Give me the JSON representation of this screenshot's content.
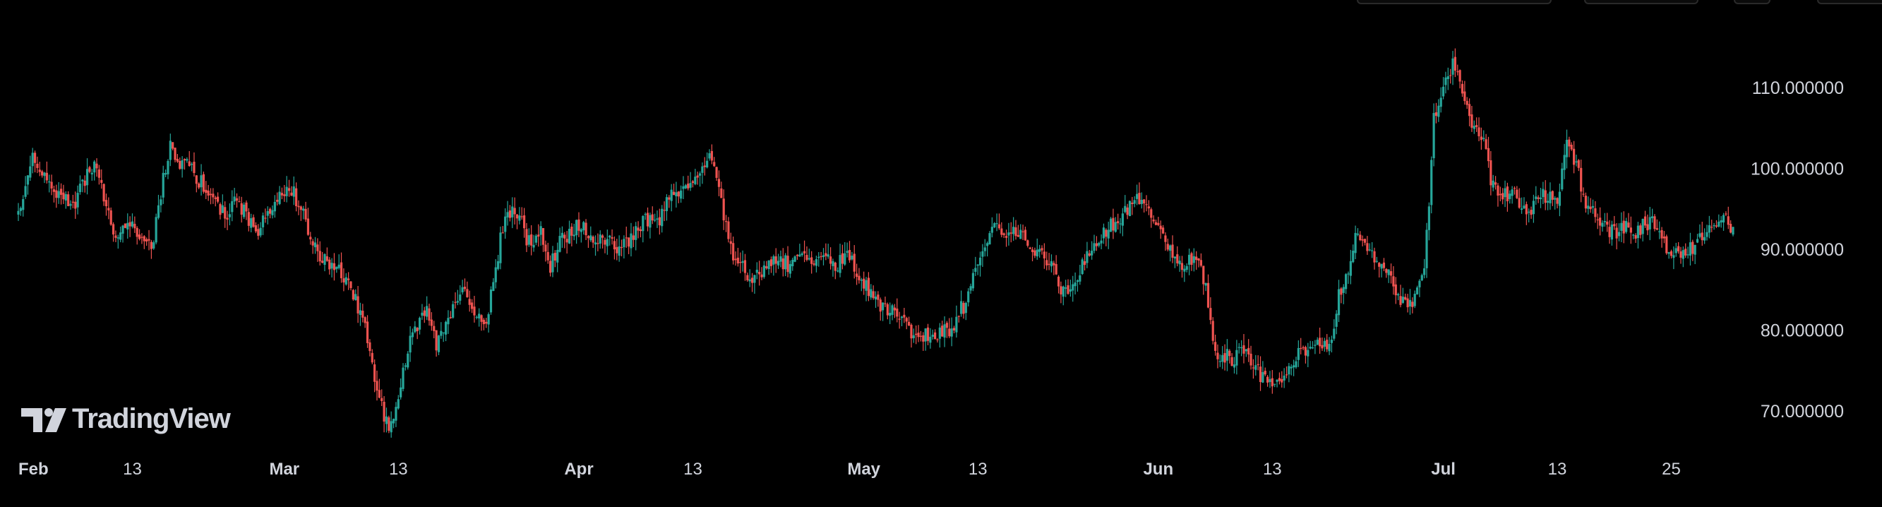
{
  "chart_data": {
    "type": "candlestick",
    "title": "",
    "xlabel": "",
    "ylabel": "",
    "ylim": [
      64,
      118
    ],
    "price_ticks": [
      "110.000000",
      "100.000000",
      "90.000000",
      "80.000000",
      "70.000000"
    ],
    "price_tick_values": [
      110,
      100,
      90,
      80,
      70
    ],
    "time_ticks": [
      {
        "label": "Feb",
        "bold": true,
        "day": 0
      },
      {
        "label": "13",
        "bold": false,
        "day": 12
      },
      {
        "label": "Mar",
        "bold": true,
        "day": 28
      },
      {
        "label": "13",
        "bold": false,
        "day": 40
      },
      {
        "label": "Apr",
        "bold": true,
        "day": 59
      },
      {
        "label": "13",
        "bold": false,
        "day": 71
      },
      {
        "label": "May",
        "bold": true,
        "day": 89
      },
      {
        "label": "13",
        "bold": false,
        "day": 101
      },
      {
        "label": "Jun",
        "bold": true,
        "day": 120
      },
      {
        "label": "13",
        "bold": false,
        "day": 132
      },
      {
        "label": "Jul",
        "bold": true,
        "day": 150
      },
      {
        "label": "13",
        "bold": false,
        "day": 162
      },
      {
        "label": "25",
        "bold": false,
        "day": 174
      }
    ],
    "x_range_days": [
      0,
      180.5
    ],
    "price_path": [
      [
        0,
        94.5
      ],
      [
        1.5,
        101
      ],
      [
        3,
        99
      ],
      [
        4,
        97
      ],
      [
        6,
        96
      ],
      [
        8,
        101
      ],
      [
        9,
        97
      ],
      [
        10,
        92
      ],
      [
        12,
        93
      ],
      [
        14,
        90
      ],
      [
        15,
        97
      ],
      [
        16,
        103
      ],
      [
        17,
        101
      ],
      [
        18,
        100
      ],
      [
        20,
        97
      ],
      [
        21,
        95
      ],
      [
        22,
        94
      ],
      [
        23,
        96
      ],
      [
        25,
        92
      ],
      [
        26,
        94
      ],
      [
        27,
        96
      ],
      [
        29,
        97
      ],
      [
        31,
        91
      ],
      [
        32,
        89
      ],
      [
        34,
        87
      ],
      [
        35,
        85
      ],
      [
        36,
        82
      ],
      [
        37,
        78
      ],
      [
        38,
        71
      ],
      [
        39,
        68
      ],
      [
        40,
        72
      ],
      [
        41,
        78
      ],
      [
        42,
        80
      ],
      [
        43,
        83
      ],
      [
        44,
        78
      ],
      [
        45,
        80
      ],
      [
        46,
        84
      ],
      [
        47,
        85
      ],
      [
        48,
        82
      ],
      [
        49,
        80
      ],
      [
        50,
        86
      ],
      [
        51,
        93
      ],
      [
        52,
        95
      ],
      [
        53,
        93
      ],
      [
        54,
        90
      ],
      [
        55,
        92
      ],
      [
        56,
        88
      ],
      [
        57,
        91
      ],
      [
        58,
        92
      ],
      [
        59,
        93
      ],
      [
        60,
        92
      ],
      [
        62,
        91
      ],
      [
        63,
        90
      ],
      [
        64,
        91
      ],
      [
        65,
        92
      ],
      [
        66,
        94
      ],
      [
        67,
        93
      ],
      [
        68,
        95
      ],
      [
        69,
        97
      ],
      [
        70,
        98
      ],
      [
        71,
        98
      ],
      [
        72,
        100
      ],
      [
        73,
        102
      ],
      [
        74,
        96
      ],
      [
        75,
        90
      ],
      [
        76,
        88
      ],
      [
        77,
        86
      ],
      [
        78,
        87
      ],
      [
        80,
        89
      ],
      [
        81,
        88
      ],
      [
        82,
        90
      ],
      [
        84,
        89
      ],
      [
        86,
        88
      ],
      [
        87,
        89
      ],
      [
        88,
        88
      ],
      [
        89,
        86
      ],
      [
        90,
        84
      ],
      [
        92,
        82
      ],
      [
        94,
        80
      ],
      [
        96,
        79
      ],
      [
        98,
        80
      ],
      [
        99,
        82
      ],
      [
        100,
        84
      ],
      [
        101,
        88
      ],
      [
        102,
        91
      ],
      [
        103,
        93
      ],
      [
        105,
        92
      ],
      [
        107,
        90
      ],
      [
        108,
        89
      ],
      [
        109,
        87
      ],
      [
        110,
        85
      ],
      [
        111,
        86
      ],
      [
        112,
        88
      ],
      [
        113,
        90
      ],
      [
        114,
        92
      ],
      [
        116,
        94
      ],
      [
        118,
        96
      ],
      [
        119,
        95
      ],
      [
        120,
        93
      ],
      [
        121,
        91
      ],
      [
        122,
        89
      ],
      [
        123,
        88
      ],
      [
        124,
        89
      ],
      [
        125,
        86
      ],
      [
        126,
        77
      ],
      [
        127,
        77
      ],
      [
        128,
        76
      ],
      [
        129,
        78
      ],
      [
        130,
        76
      ],
      [
        131,
        74
      ],
      [
        132,
        73
      ],
      [
        133,
        74
      ],
      [
        134,
        76
      ],
      [
        135,
        77
      ],
      [
        136,
        77
      ],
      [
        137,
        78
      ],
      [
        138,
        78
      ],
      [
        139,
        84
      ],
      [
        140,
        88
      ],
      [
        141,
        92
      ],
      [
        142,
        90
      ],
      [
        143,
        88
      ],
      [
        144,
        87
      ],
      [
        145,
        85
      ],
      [
        146,
        83
      ],
      [
        147,
        84
      ],
      [
        148,
        88
      ],
      [
        148.5,
        95
      ],
      [
        149,
        106
      ],
      [
        150,
        110
      ],
      [
        151,
        113
      ],
      [
        152,
        109
      ],
      [
        153,
        106
      ],
      [
        154,
        104
      ],
      [
        155,
        99
      ],
      [
        156,
        96
      ],
      [
        157,
        97
      ],
      [
        158,
        96
      ],
      [
        159,
        94
      ],
      [
        160,
        96
      ],
      [
        161,
        97
      ],
      [
        162,
        96
      ],
      [
        163,
        103
      ],
      [
        164,
        100
      ],
      [
        165,
        96
      ],
      [
        166,
        94
      ],
      [
        167,
        93
      ],
      [
        168,
        92
      ],
      [
        169,
        93
      ],
      [
        170,
        92
      ],
      [
        171,
        93
      ],
      [
        172,
        93
      ],
      [
        173,
        91
      ],
      [
        174,
        90
      ],
      [
        175,
        89
      ],
      [
        176,
        90
      ],
      [
        177,
        91
      ],
      [
        178,
        92
      ],
      [
        179,
        94
      ],
      [
        180,
        93
      ]
    ],
    "candles_per_day": 4,
    "up_color": "#26a69a",
    "down_color": "#ef5350",
    "grid": false,
    "background": "#000000"
  },
  "branding": {
    "logo_text": "TradingView",
    "logo_icon": "tradingview-logo-icon"
  },
  "colors": {
    "axis_text": "#d1d4dc",
    "time_text": "#d1d4dc"
  }
}
